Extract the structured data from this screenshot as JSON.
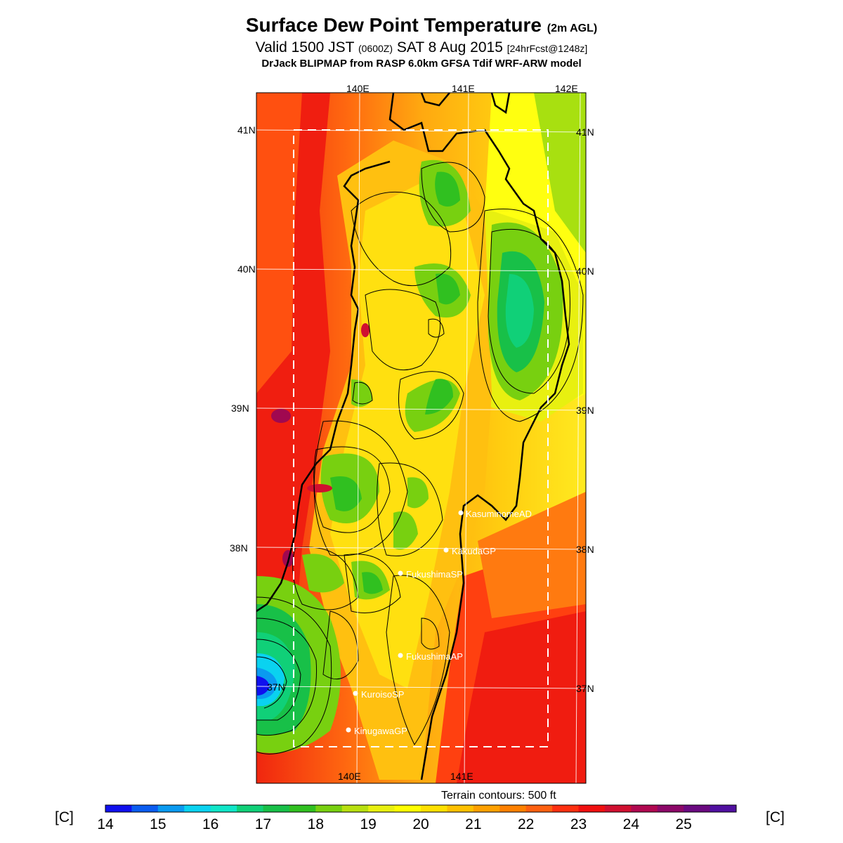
{
  "title": {
    "main": "Surface Dew Point Temperature",
    "main_suffix": "(2m AGL)",
    "valid_a": "Valid 1500 JST",
    "valid_b": "(0600Z)",
    "valid_c": "SAT 8 Aug 2015",
    "valid_d": "[24hrFcst@1248z]",
    "model": "DrJack BLIPMAP from RASP 6.0km GFSA Tdif WRF-ARW model"
  },
  "map": {
    "lon_labels_top": [
      "140E",
      "141E",
      "142E"
    ],
    "lon_labels_bottom": [
      "140E",
      "141E"
    ],
    "lat_labels": [
      "41N",
      "40N",
      "39N",
      "38N",
      "37N"
    ],
    "stations": [
      {
        "name": "KasuminomeAD"
      },
      {
        "name": "KakudaGP"
      },
      {
        "name": "FukushimaSP"
      },
      {
        "name": "FukushimaAP"
      },
      {
        "name": "KuroisoSP"
      },
      {
        "name": "KinugawaGP"
      }
    ],
    "terrain_note": "Terrain contours: 500 ft"
  },
  "colorbar": {
    "unit_left": "[C]",
    "unit_right": "[C]",
    "ticks": [
      "14",
      "15",
      "16",
      "17",
      "18",
      "19",
      "20",
      "21",
      "22",
      "23",
      "24",
      "25"
    ],
    "colors": [
      "#1010ee",
      "#0a5cf0",
      "#0a9af0",
      "#0ad2f0",
      "#10e6c8",
      "#10d078",
      "#18c048",
      "#30c020",
      "#78d010",
      "#b8e010",
      "#e8f010",
      "#ffff00",
      "#ffe000",
      "#ffc000",
      "#ffa000",
      "#ff8000",
      "#ff6010",
      "#ff3010",
      "#f01010",
      "#d01030",
      "#b00850",
      "#8c0868",
      "#6a0a80",
      "#5010a0"
    ]
  }
}
